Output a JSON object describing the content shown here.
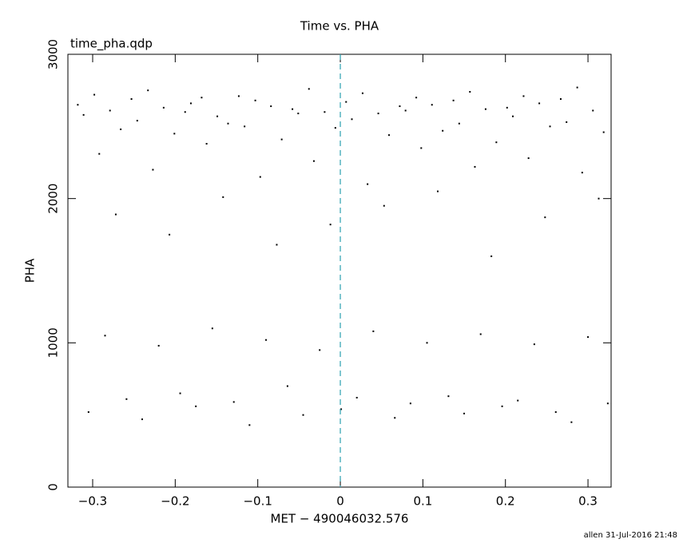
{
  "chart_data": {
    "type": "scatter",
    "title": "Time vs. PHA",
    "subtitle": "time_pha.qdp",
    "x_label": "MET − 490046032.576",
    "y_label": "PHA",
    "footer": "allen 31-Jul-2016 21:48",
    "color": "#000000",
    "xlim": [
      -0.33,
      0.328
    ],
    "ylim": [
      0,
      3000
    ],
    "xticks": [
      {
        "value": -0.3,
        "label": "−0.3"
      },
      {
        "value": -0.2,
        "label": "−0.2"
      },
      {
        "value": -0.1,
        "label": "−0.1"
      },
      0,
      0.1,
      0.2,
      0.3
    ],
    "yticks": [
      0,
      1000,
      2000,
      3000
    ],
    "vline": {
      "x": 0,
      "color": "#2aa0b0"
    },
    "x": [
      -0.318,
      -0.311,
      -0.305,
      -0.298,
      -0.292,
      -0.285,
      -0.279,
      -0.272,
      -0.266,
      -0.259,
      -0.253,
      -0.246,
      -0.24,
      -0.233,
      -0.227,
      -0.22,
      -0.214,
      -0.207,
      -0.201,
      -0.194,
      -0.188,
      -0.181,
      -0.175,
      -0.168,
      -0.162,
      -0.155,
      -0.149,
      -0.142,
      -0.136,
      -0.129,
      -0.123,
      -0.116,
      -0.11,
      -0.103,
      -0.097,
      -0.09,
      -0.084,
      -0.077,
      -0.071,
      -0.064,
      -0.058,
      -0.051,
      -0.045,
      -0.038,
      -0.032,
      -0.025,
      -0.019,
      -0.012,
      -0.006,
      0.001,
      0.007,
      0.014,
      0.02,
      0.027,
      0.033,
      0.04,
      0.046,
      0.053,
      0.059,
      0.066,
      0.072,
      0.079,
      0.085,
      0.092,
      0.098,
      0.105,
      0.111,
      0.118,
      0.124,
      0.131,
      0.137,
      0.144,
      0.15,
      0.157,
      0.163,
      0.17,
      0.176,
      0.183,
      0.189,
      0.196,
      0.202,
      0.209,
      0.215,
      0.222,
      0.228,
      0.235,
      0.241,
      0.248,
      0.254,
      0.261,
      0.267,
      0.274,
      0.28,
      0.287,
      0.293,
      0.3,
      0.306,
      0.313,
      0.319,
      0.324
    ],
    "y": [
      2650,
      2580,
      520,
      2720,
      2310,
      1050,
      2610,
      1890,
      2480,
      610,
      2690,
      2540,
      470,
      2750,
      2200,
      980,
      2630,
      1750,
      2450,
      650,
      2600,
      2660,
      560,
      2700,
      2380,
      1100,
      2570,
      2010,
      2520,
      590,
      2710,
      2500,
      430,
      2680,
      2150,
      1020,
      2640,
      1680,
      2410,
      700,
      2620,
      2590,
      500,
      2760,
      2260,
      950,
      2600,
      1820,
      2490,
      540,
      2670,
      2550,
      620,
      2730,
      2100,
      1080,
      2590,
      1950,
      2440,
      480,
      2640,
      2610,
      580,
      2700,
      2350,
      1000,
      2650,
      2050,
      2470,
      630,
      2680,
      2520,
      510,
      2740,
      2220,
      1060,
      2620,
      1600,
      2390,
      560,
      2630,
      2570,
      600,
      2710,
      2280,
      990,
      2660,
      1870,
      2500,
      520,
      2690,
      2530,
      450,
      2770,
      2180,
      1040,
      2610,
      2000,
      2460,
      580
    ]
  }
}
